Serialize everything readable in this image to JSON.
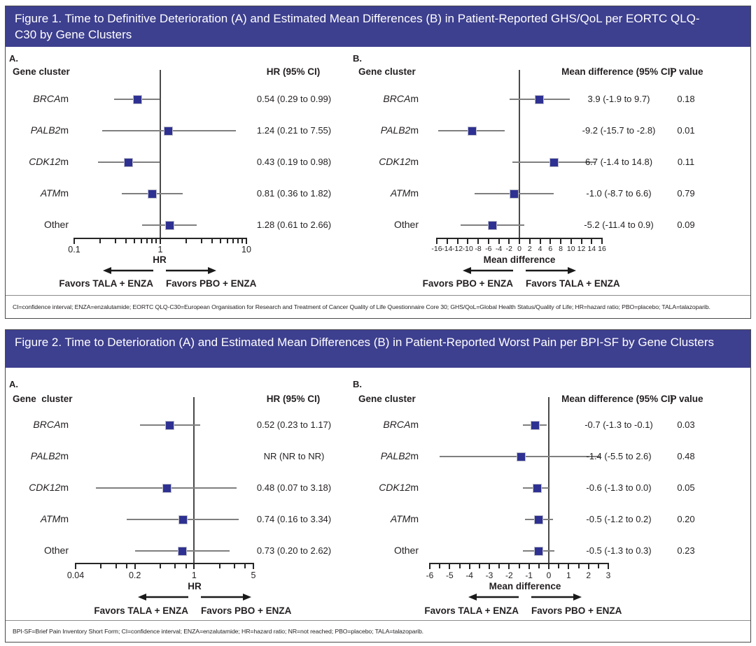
{
  "colors": {
    "header_bg": "#3d3f8f",
    "header_text": "#ffffff",
    "marker": "#2e3192",
    "marker_edge": "#bdbdc8",
    "ci_line": "#7f7f7f",
    "ref_line": "#4a4a4a",
    "axis": "#262626",
    "box_border": "#4a4a4c"
  },
  "figures": [
    {
      "title": "Figure 1. Time to Definitive Deterioration (A) and Estimated Mean Differences (B) in Patient-Reported GHS/QoL per EORTC QLQ-C30 by Gene Clusters",
      "footnote": "CI=confidence interval; ENZA=enzalutamide; EORTC QLQ-C30=European Organisation for Research and Treatment of Cancer Quality of Life Questionnaire Core 30; GHS/QoL=Global Health Status/Quality of Life; HR=hazard ratio; PBO=placebo; TALA=talazoparib.",
      "panels": [
        {
          "panel_label": "A.",
          "header_left": "Gene cluster",
          "header_value": "HR (95% CI)",
          "header_p": "",
          "axis_label": "HR",
          "favors_left": "Favors TALA + ENZA",
          "favors_right": "Favors PBO + ENZA",
          "rows": [
            {
              "label_italic": "BRCA",
              "label_rest": "m",
              "value": "0.54 (0.29 to 0.99)",
              "p": ""
            },
            {
              "label_italic": "PALB2",
              "label_rest": "m",
              "value": "1.24 (0.21 to 7.55)",
              "p": ""
            },
            {
              "label_italic": "CDK12",
              "label_rest": "m",
              "value": "0.43 (0.19 to 0.98)",
              "p": ""
            },
            {
              "label_italic": "ATM",
              "label_rest": "m",
              "value": "0.81 (0.36 to 1.82)",
              "p": ""
            },
            {
              "label_italic": "",
              "label_rest": "Other",
              "value": "1.28 (0.61 to 2.66)",
              "p": ""
            }
          ]
        },
        {
          "panel_label": "B.",
          "header_left": "Gene cluster",
          "header_value": "Mean difference (95% CI)",
          "header_p": "P value",
          "axis_label": "Mean difference",
          "favors_left": "Favors PBO + ENZA",
          "favors_right": "Favors TALA + ENZA",
          "rows": [
            {
              "label_italic": "BRCA",
              "label_rest": "m",
              "value": "3.9 (-1.9 to 9.7)",
              "p": "0.18"
            },
            {
              "label_italic": "PALB2",
              "label_rest": "m",
              "value": "-9.2 (-15.7 to -2.8)",
              "p": "0.01"
            },
            {
              "label_italic": "CDK12",
              "label_rest": "m",
              "value": "6.7 (-1.4 to 14.8)",
              "p": "0.11"
            },
            {
              "label_italic": "ATM",
              "label_rest": "m",
              "value": "-1.0 (-8.7 to 6.6)",
              "p": "0.79"
            },
            {
              "label_italic": "",
              "label_rest": "Other",
              "value": "-5.2 (-11.4 to 0.9)",
              "p": "0.09"
            }
          ]
        }
      ]
    },
    {
      "title": "Figure 2. Time to Deterioration (A) and Estimated Mean Differences (B) in Patient-Reported Worst Pain per BPI-SF by Gene Clusters",
      "footnote": "BPI-SF=Brief Pain Inventory Short Form; CI=confidence interval; ENZA=enzalutamide; HR=hazard ratio; NR=not reached; PBO=placebo; TALA=talazoparib.",
      "panels": [
        {
          "panel_label": "A.",
          "header_left": "Gene  cluster",
          "header_value": "HR (95% CI)",
          "header_p": "",
          "axis_label": "HR",
          "favors_left": "Favors TALA + ENZA",
          "favors_right": "Favors PBO + ENZA",
          "rows": [
            {
              "label_italic": "BRCA",
              "label_rest": "m",
              "value": "0.52 (0.23 to 1.17)",
              "p": ""
            },
            {
              "label_italic": "PALB2",
              "label_rest": "m",
              "value": "NR (NR to NR)",
              "p": ""
            },
            {
              "label_italic": "CDK12",
              "label_rest": "m",
              "value": "0.48 (0.07 to 3.18)",
              "p": ""
            },
            {
              "label_italic": "ATM",
              "label_rest": "m",
              "value": "0.74 (0.16 to 3.34)",
              "p": ""
            },
            {
              "label_italic": "",
              "label_rest": "Other",
              "value": "0.73 (0.20 to 2.62)",
              "p": ""
            }
          ]
        },
        {
          "panel_label": "B.",
          "header_left": "Gene cluster",
          "header_value": "Mean difference (95% CI)",
          "header_p": "P value",
          "axis_label": "Mean difference",
          "favors_left": "Favors TALA + ENZA",
          "favors_right": "Favors PBO + ENZA",
          "rows": [
            {
              "label_italic": "BRCA",
              "label_rest": "m",
              "value": "-0.7 (-1.3 to -0.1)",
              "p": "0.03"
            },
            {
              "label_italic": "PALB2",
              "label_rest": "m",
              "value": "-1.4 (-5.5 to 2.6)",
              "p": "0.48"
            },
            {
              "label_italic": "CDK12",
              "label_rest": "m",
              "value": "-0.6 (-1.3 to 0.0)",
              "p": "0.05"
            },
            {
              "label_italic": "ATM",
              "label_rest": "m",
              "value": "-0.5 (-1.2 to 0.2)",
              "p": "0.20"
            },
            {
              "label_italic": "",
              "label_rest": "Other",
              "value": "-0.5 (-1.3 to 0.3)",
              "p": "0.23"
            }
          ]
        }
      ]
    }
  ],
  "chart_data": [
    {
      "type": "scatter",
      "subtype": "forest-plot",
      "title": "Figure 1A. Time to definitive deterioration in GHS/QoL (EORTC QLQ-C30), HR (95% CI) by gene cluster",
      "categories": [
        "BRCAm",
        "PALB2m",
        "CDK12m",
        "ATMm",
        "Other"
      ],
      "series": [
        {
          "name": "HR",
          "values": [
            0.54,
            1.24,
            0.43,
            0.81,
            1.28
          ]
        },
        {
          "name": "95% CI lower",
          "values": [
            0.29,
            0.21,
            0.19,
            0.36,
            0.61
          ]
        },
        {
          "name": "95% CI upper",
          "values": [
            0.99,
            7.55,
            0.98,
            1.82,
            2.66
          ]
        }
      ],
      "annotations": [
        "0.54 (0.29 to 0.99)",
        "1.24 (0.21 to 7.55)",
        "0.43 (0.19 to 0.98)",
        "0.81 (0.36 to 1.82)",
        "1.28 (0.61 to 2.66)"
      ],
      "xlabel": "HR",
      "xscale": "log",
      "xlim": [
        0.1,
        10
      ],
      "ref_line": 1,
      "xticks": [
        0.1,
        1,
        10
      ],
      "xtick_labels": [
        "0.1",
        "1",
        "10"
      ],
      "minor_xticks": [
        0.2,
        0.3,
        0.4,
        0.5,
        0.6,
        0.7,
        0.8,
        0.9,
        2,
        3,
        4,
        5,
        6,
        7,
        8,
        9
      ],
      "grid": false,
      "legend_position": "none"
    },
    {
      "type": "scatter",
      "subtype": "forest-plot",
      "title": "Figure 1B. Estimated mean differences in GHS/QoL (EORTC QLQ-C30), mean difference (95% CI) and P value by gene cluster",
      "categories": [
        "BRCAm",
        "PALB2m",
        "CDK12m",
        "ATMm",
        "Other"
      ],
      "series": [
        {
          "name": "Mean difference",
          "values": [
            3.9,
            -9.2,
            6.7,
            -1.0,
            -5.2
          ]
        },
        {
          "name": "95% CI lower",
          "values": [
            -1.9,
            -15.7,
            -1.4,
            -8.7,
            -11.4
          ]
        },
        {
          "name": "95% CI upper",
          "values": [
            9.7,
            -2.8,
            14.8,
            6.6,
            0.9
          ]
        }
      ],
      "p_values": [
        "0.18",
        "0.01",
        "0.11",
        "0.79",
        "0.09"
      ],
      "annotations": [
        "3.9 (-1.9 to 9.7)",
        "-9.2 (-15.7 to -2.8)",
        "6.7 (-1.4 to 14.8)",
        "-1.0 (-8.7 to 6.6)",
        "-5.2 (-11.4 to 0.9)"
      ],
      "xlabel": "Mean difference",
      "xscale": "linear",
      "xlim": [
        -16,
        16
      ],
      "ref_line": 0,
      "xticks": [
        -16,
        -14,
        -12,
        -10,
        -8,
        -6,
        -4,
        -2,
        0,
        2,
        4,
        6,
        8,
        10,
        12,
        14,
        16
      ],
      "xtick_labels": [
        "-16",
        "-14",
        "-12",
        "-10",
        "-8",
        "-6",
        "-4",
        "-2",
        "0",
        "2",
        "4",
        "6",
        "8",
        "10",
        "12",
        "14",
        "16"
      ],
      "minor_xticks": [],
      "grid": false,
      "legend_position": "none"
    },
    {
      "type": "scatter",
      "subtype": "forest-plot",
      "title": "Figure 2A. Time to deterioration in worst pain (BPI-SF), HR (95% CI) by gene cluster",
      "categories": [
        "BRCAm",
        "PALB2m",
        "CDK12m",
        "ATMm",
        "Other"
      ],
      "series": [
        {
          "name": "HR",
          "values": [
            0.52,
            null,
            0.48,
            0.74,
            0.73
          ]
        },
        {
          "name": "95% CI lower",
          "values": [
            0.23,
            null,
            0.07,
            0.16,
            0.2
          ]
        },
        {
          "name": "95% CI upper",
          "values": [
            1.17,
            null,
            3.18,
            3.34,
            2.62
          ]
        }
      ],
      "annotations": [
        "0.52 (0.23 to 1.17)",
        "NR (NR to NR)",
        "0.48 (0.07 to 3.18)",
        "0.74 (0.16 to 3.34)",
        "0.73 (0.20 to 2.62)"
      ],
      "xlabel": "HR",
      "xscale": "log",
      "xlim": [
        0.04,
        5
      ],
      "ref_line": 1,
      "xticks": [
        0.04,
        0.2,
        1,
        5
      ],
      "xtick_labels": [
        "0.04",
        "0.2",
        "1",
        "5"
      ],
      "minor_xticks": [
        0.08,
        0.12,
        0.16,
        0.4,
        0.6,
        0.8,
        2,
        3,
        4
      ],
      "grid": false,
      "legend_position": "none"
    },
    {
      "type": "scatter",
      "subtype": "forest-plot",
      "title": "Figure 2B. Estimated mean differences in worst pain (BPI-SF), mean difference (95% CI) and P value by gene cluster",
      "categories": [
        "BRCAm",
        "PALB2m",
        "CDK12m",
        "ATMm",
        "Other"
      ],
      "series": [
        {
          "name": "Mean difference",
          "values": [
            -0.7,
            -1.4,
            -0.6,
            -0.5,
            -0.5
          ]
        },
        {
          "name": "95% CI lower",
          "values": [
            -1.3,
            -5.5,
            -1.3,
            -1.2,
            -1.3
          ]
        },
        {
          "name": "95% CI upper",
          "values": [
            -0.1,
            2.6,
            0.0,
            0.2,
            0.3
          ]
        }
      ],
      "p_values": [
        "0.03",
        "0.48",
        "0.05",
        "0.20",
        "0.23"
      ],
      "annotations": [
        "-0.7 (-1.3 to -0.1)",
        "-1.4 (-5.5 to 2.6)",
        "-0.6 (-1.3 to 0.0)",
        "-0.5 (-1.2 to 0.2)",
        "-0.5 (-1.3 to 0.3)"
      ],
      "xlabel": "Mean difference",
      "xscale": "linear",
      "xlim": [
        -6,
        3
      ],
      "ref_line": 0,
      "xticks": [
        -6,
        -5,
        -4,
        -3,
        -2,
        -1,
        0,
        1,
        2,
        3
      ],
      "xtick_labels": [
        "-6",
        "-5",
        "-4",
        "-3",
        "-2",
        "-1",
        "0",
        "1",
        "2",
        "3"
      ],
      "minor_xticks": [
        -5.5,
        -4.5,
        -3.5,
        -2.5,
        -1.5,
        -0.5,
        0.5,
        1.5,
        2.5
      ],
      "grid": false,
      "legend_position": "none"
    }
  ]
}
